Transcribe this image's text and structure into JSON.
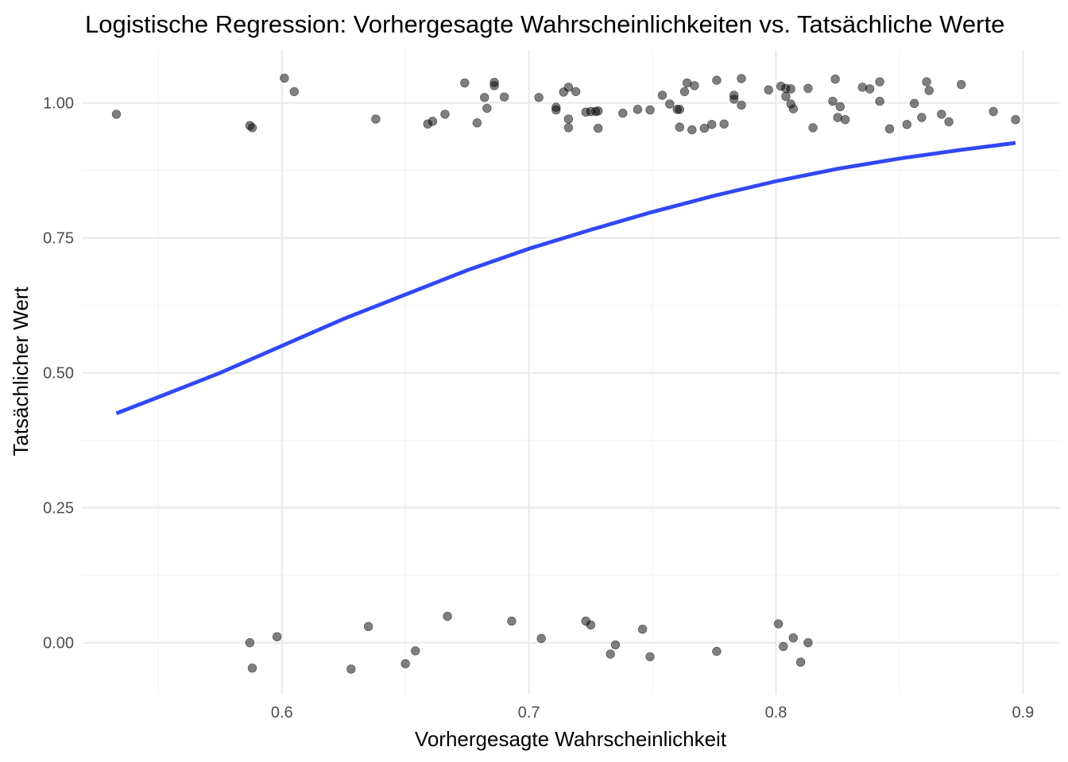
{
  "chart_data": {
    "type": "scatter",
    "title": "Logistische Regression: Vorhergesagte Wahrscheinlichkeiten vs. Tatsächliche Werte",
    "xlabel": "Vorhergesagte Wahrscheinlichkeit",
    "ylabel": "Tatsächlicher Wert",
    "xlim": [
      0.519,
      0.915
    ],
    "ylim": [
      -0.096,
      1.098
    ],
    "x_ticks": [
      0.6,
      0.7,
      0.8,
      0.9
    ],
    "x_tick_labels": [
      "0.6",
      "0.7",
      "0.8",
      "0.9"
    ],
    "y_ticks": [
      0.0,
      0.25,
      0.5,
      0.75,
      1.0
    ],
    "y_tick_labels": [
      "0.00",
      "0.25",
      "0.50",
      "0.75",
      "1.00"
    ],
    "grid": true,
    "legend": "none",
    "colors": {
      "points": "#000000",
      "curve": "#3048f5",
      "grid": "#ebebeb"
    },
    "series": [
      {
        "type": "scatter",
        "points": [
          [
            0.533,
            0.979
          ],
          [
            0.587,
            0.958
          ],
          [
            0.588,
            0.954
          ],
          [
            0.601,
            1.046
          ],
          [
            0.605,
            1.021
          ],
          [
            0.638,
            0.97
          ],
          [
            0.659,
            0.961
          ],
          [
            0.661,
            0.966
          ],
          [
            0.666,
            0.979
          ],
          [
            0.674,
            1.037
          ],
          [
            0.679,
            0.963
          ],
          [
            0.682,
            1.01
          ],
          [
            0.683,
            0.99
          ],
          [
            0.686,
            1.038
          ],
          [
            0.686,
            1.032
          ],
          [
            0.69,
            1.011
          ],
          [
            0.704,
            1.01
          ],
          [
            0.711,
            0.992
          ],
          [
            0.711,
            0.987
          ],
          [
            0.714,
            1.02
          ],
          [
            0.716,
            0.97
          ],
          [
            0.716,
            0.954
          ],
          [
            0.716,
            1.029
          ],
          [
            0.719,
            1.021
          ],
          [
            0.723,
            0.983
          ],
          [
            0.725,
            0.984
          ],
          [
            0.727,
            0.984
          ],
          [
            0.728,
            0.985
          ],
          [
            0.728,
            0.953
          ],
          [
            0.738,
            0.981
          ],
          [
            0.744,
            0.988
          ],
          [
            0.749,
            0.987
          ],
          [
            0.754,
            1.014
          ],
          [
            0.757,
            0.998
          ],
          [
            0.76,
            0.988
          ],
          [
            0.761,
            0.988
          ],
          [
            0.761,
            0.955
          ],
          [
            0.763,
            1.021
          ],
          [
            0.764,
            1.037
          ],
          [
            0.766,
            0.95
          ],
          [
            0.767,
            1.032
          ],
          [
            0.771,
            0.953
          ],
          [
            0.774,
            0.96
          ],
          [
            0.776,
            1.042
          ],
          [
            0.779,
            0.961
          ],
          [
            0.783,
            1.014
          ],
          [
            0.783,
            1.007
          ],
          [
            0.786,
            0.996
          ],
          [
            0.786,
            1.045
          ],
          [
            0.797,
            1.024
          ],
          [
            0.802,
            1.031
          ],
          [
            0.804,
            1.012
          ],
          [
            0.804,
            1.027
          ],
          [
            0.806,
            1.026
          ],
          [
            0.806,
            0.998
          ],
          [
            0.807,
            0.989
          ],
          [
            0.813,
            1.027
          ],
          [
            0.815,
            0.954
          ],
          [
            0.823,
            1.003
          ],
          [
            0.824,
            1.044
          ],
          [
            0.825,
            0.973
          ],
          [
            0.826,
            0.993
          ],
          [
            0.828,
            0.969
          ],
          [
            0.835,
            1.029
          ],
          [
            0.838,
            1.026
          ],
          [
            0.842,
            1.003
          ],
          [
            0.842,
            1.039
          ],
          [
            0.846,
            0.952
          ],
          [
            0.853,
            0.96
          ],
          [
            0.856,
            0.999
          ],
          [
            0.859,
            0.973
          ],
          [
            0.861,
            1.039
          ],
          [
            0.862,
            1.023
          ],
          [
            0.867,
            0.979
          ],
          [
            0.87,
            0.965
          ],
          [
            0.875,
            1.034
          ],
          [
            0.888,
            0.984
          ],
          [
            0.897,
            0.969
          ],
          [
            0.587,
            0.0
          ],
          [
            0.588,
            -0.047
          ],
          [
            0.598,
            0.011
          ],
          [
            0.628,
            -0.049
          ],
          [
            0.635,
            0.03
          ],
          [
            0.65,
            -0.039
          ],
          [
            0.654,
            -0.015
          ],
          [
            0.667,
            0.049
          ],
          [
            0.693,
            0.04
          ],
          [
            0.705,
            0.008
          ],
          [
            0.723,
            0.04
          ],
          [
            0.725,
            0.033
          ],
          [
            0.733,
            -0.021
          ],
          [
            0.735,
            -0.004
          ],
          [
            0.746,
            0.025
          ],
          [
            0.749,
            -0.026
          ],
          [
            0.776,
            -0.016
          ],
          [
            0.801,
            0.035
          ],
          [
            0.803,
            -0.007
          ],
          [
            0.807,
            0.009
          ],
          [
            0.81,
            -0.036
          ],
          [
            0.813,
            0.0
          ]
        ]
      },
      {
        "type": "line",
        "points": [
          [
            0.533,
            0.425
          ],
          [
            0.55,
            0.455
          ],
          [
            0.575,
            0.5
          ],
          [
            0.6,
            0.55
          ],
          [
            0.625,
            0.6
          ],
          [
            0.65,
            0.645
          ],
          [
            0.675,
            0.69
          ],
          [
            0.7,
            0.73
          ],
          [
            0.725,
            0.765
          ],
          [
            0.75,
            0.798
          ],
          [
            0.775,
            0.828
          ],
          [
            0.8,
            0.855
          ],
          [
            0.825,
            0.878
          ],
          [
            0.85,
            0.897
          ],
          [
            0.875,
            0.913
          ],
          [
            0.897,
            0.926
          ]
        ]
      }
    ]
  }
}
